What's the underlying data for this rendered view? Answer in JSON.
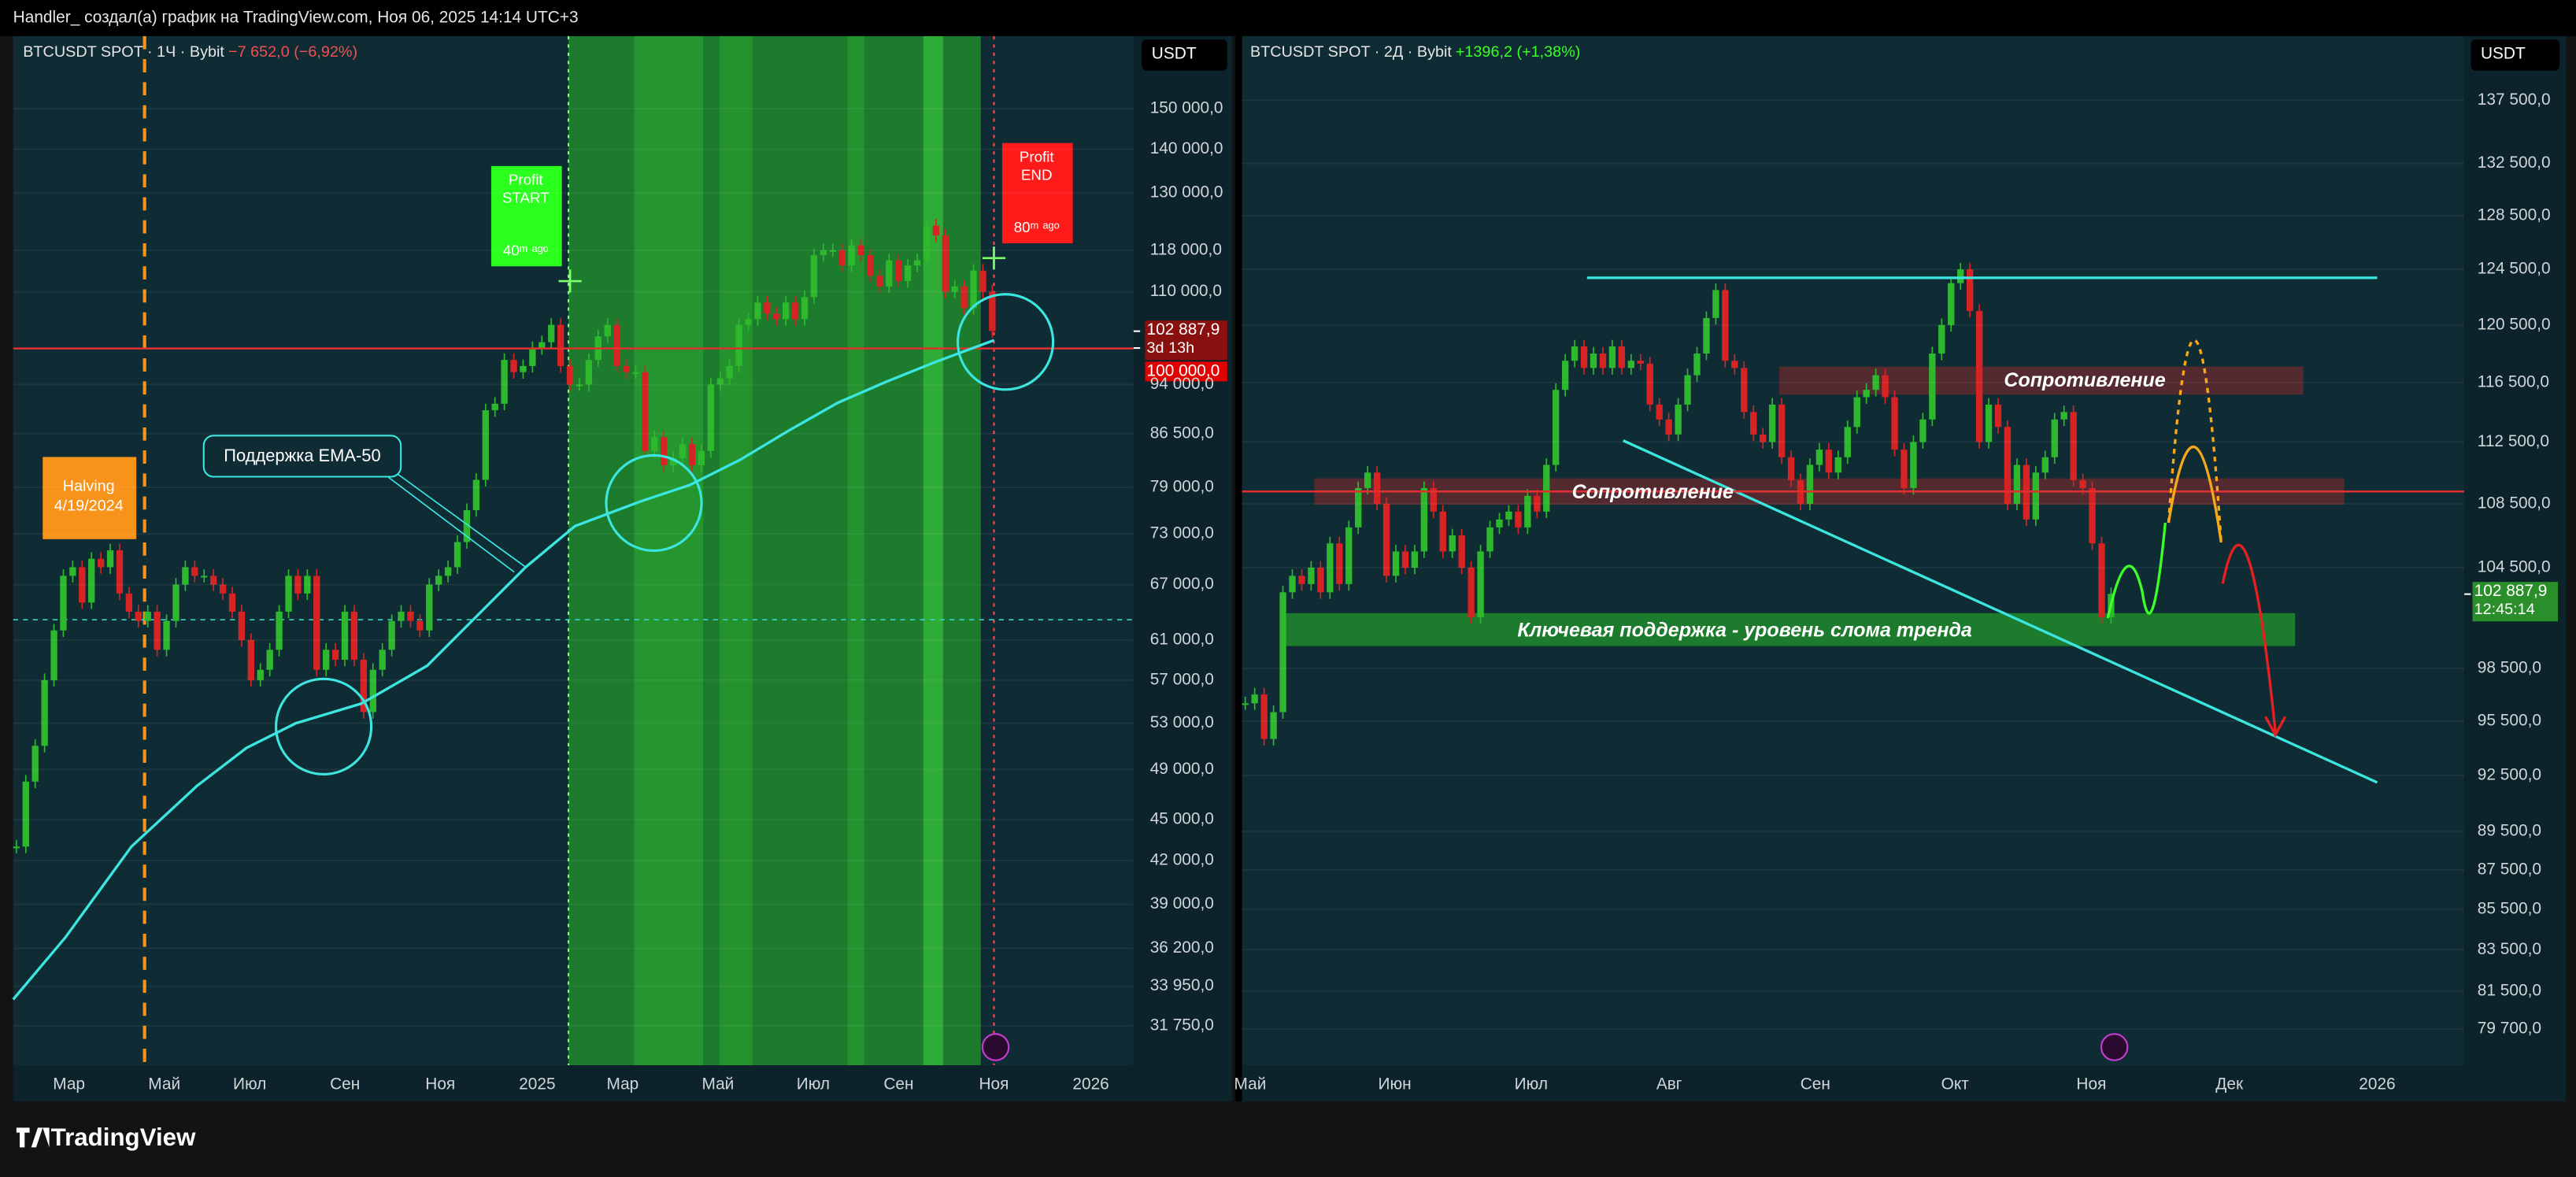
{
  "header": {
    "text": "Handler_ создал(а) график на TradingView.com, Ноя 06, 2025 14:14 UTC+3"
  },
  "panels": [
    {
      "symbol": "BTCUSDT SPOT · 1Ч · Bybit",
      "change": "−7 652,0 (−6,92%)",
      "currency": "USDT",
      "log_scale": true,
      "yticks": [
        {
          "value": 150000,
          "label": "150 000,0"
        },
        {
          "value": 140000,
          "label": "140 000,0"
        },
        {
          "value": 130000,
          "label": "130 000,0"
        },
        {
          "value": 118000,
          "label": "118 000,0"
        },
        {
          "value": 110000,
          "label": "110 000,0"
        },
        {
          "value": 94000,
          "label": "94 000,0"
        },
        {
          "value": 86500,
          "label": "86 500,0"
        },
        {
          "value": 79000,
          "label": "79 000,0"
        },
        {
          "value": 73000,
          "label": "73 000,0"
        },
        {
          "value": 67000,
          "label": "67 000,0"
        },
        {
          "value": 61000,
          "label": "61 000,0"
        },
        {
          "value": 57000,
          "label": "57 000,0"
        },
        {
          "value": 53000,
          "label": "53 000,0"
        },
        {
          "value": 49000,
          "label": "49 000,0"
        },
        {
          "value": 45000,
          "label": "45 000,0"
        },
        {
          "value": 42000,
          "label": "42 000,0"
        },
        {
          "value": 39000,
          "label": "39 000,0"
        },
        {
          "value": 36200,
          "label": "36 200,0"
        },
        {
          "value": 33950,
          "label": "33 950,0"
        },
        {
          "value": 31750,
          "label": "31 750,0"
        }
      ],
      "xlabels": [
        "Мар",
        "Май",
        "Июл",
        "Сен",
        "Ноя",
        "2025",
        "Мар",
        "Май",
        "Июл",
        "Сен",
        "Ноя",
        "2026"
      ],
      "last_price": {
        "value": 102887.9,
        "label": "102 887,9"
      },
      "countdown": "3d 13h",
      "level": {
        "value": 100000,
        "label": "100 000,0"
      },
      "closes": [
        43000,
        48000,
        51000,
        57000,
        62000,
        68000,
        69000,
        65000,
        70000,
        69000,
        71000,
        66000,
        64000,
        63000,
        64000,
        60000,
        63000,
        67000,
        69000,
        68000,
        68000,
        67000,
        66000,
        64000,
        61000,
        57000,
        58000,
        60000,
        64000,
        68000,
        66000,
        68000,
        58000,
        60000,
        59000,
        64000,
        59000,
        54000,
        58000,
        60000,
        63000,
        64000,
        63000,
        62000,
        67000,
        68000,
        69000,
        72000,
        76000,
        80000,
        90000,
        91000,
        98000,
        96000,
        97000,
        100000,
        101000,
        104000,
        97000,
        94000,
        94000,
        98000,
        102000,
        104000,
        97000,
        96000,
        96000,
        84000,
        86000,
        82000,
        83000,
        85000,
        82000,
        84000,
        94000,
        95000,
        97000,
        104000,
        105000,
        108000,
        106000,
        105000,
        108000,
        105000,
        109000,
        117000,
        118000,
        118000,
        115000,
        119000,
        117000,
        113000,
        111000,
        116000,
        112000,
        115000,
        116000,
        123000,
        121000,
        110000,
        111000,
        107000,
        114000,
        110000,
        102900
      ],
      "annotations": {
        "halving": [
          "Halving",
          "4/19/2024"
        ],
        "profit_start": [
          "Profit",
          "START",
          "40ᵐ ᵃᵍᵒ"
        ],
        "profit_end": [
          "Profit",
          "END",
          "80ᵐ ᵃᵍᵒ"
        ],
        "ema": "Поддержка EMA-50"
      }
    },
    {
      "symbol": "BTCUSDT SPOT · 2Д · Bybit",
      "change": "+1396,2 (+1,38%)",
      "currency": "USDT",
      "log_scale": true,
      "yticks": [
        {
          "value": 137500,
          "label": "137 500,0"
        },
        {
          "value": 132500,
          "label": "132 500,0"
        },
        {
          "value": 128500,
          "label": "128 500,0"
        },
        {
          "value": 124500,
          "label": "124 500,0"
        },
        {
          "value": 120500,
          "label": "120 500,0"
        },
        {
          "value": 116500,
          "label": "116 500,0"
        },
        {
          "value": 112500,
          "label": "112 500,0"
        },
        {
          "value": 108500,
          "label": "108 500,0"
        },
        {
          "value": 104500,
          "label": "104 500,0"
        },
        {
          "value": 98500,
          "label": "98 500,0"
        },
        {
          "value": 95500,
          "label": "95 500,0"
        },
        {
          "value": 92500,
          "label": "92 500,0"
        },
        {
          "value": 89500,
          "label": "89 500,0"
        },
        {
          "value": 87500,
          "label": "87 500,0"
        },
        {
          "value": 85500,
          "label": "85 500,0"
        },
        {
          "value": 83500,
          "label": "83 500,0"
        },
        {
          "value": 81500,
          "label": "81 500,0"
        },
        {
          "value": 79700,
          "label": "79 700,0"
        }
      ],
      "xlabels": [
        "Май",
        "Июн",
        "Июл",
        "Авг",
        "Сен",
        "Окт",
        "Ноя",
        "Дек",
        "2026"
      ],
      "last_price": {
        "value": 102887.9,
        "label": "102 887,9"
      },
      "countdown": "12:45:14",
      "closes": [
        96500,
        97000,
        94500,
        96000,
        103000,
        104000,
        103500,
        104500,
        103000,
        106000,
        103500,
        107000,
        109500,
        110500,
        108500,
        104000,
        105500,
        104500,
        105500,
        109500,
        108000,
        105500,
        106500,
        104500,
        101500,
        105500,
        107000,
        107500,
        108000,
        107000,
        109000,
        108000,
        111000,
        116000,
        118000,
        119000,
        117500,
        118500,
        117500,
        119000,
        117500,
        118000,
        117800,
        115000,
        114000,
        113000,
        115000,
        117000,
        118500,
        121000,
        123000,
        118000,
        117500,
        114500,
        113000,
        112500,
        115000,
        111500,
        110000,
        108500,
        111000,
        112000,
        110500,
        111500,
        113500,
        115500,
        116000,
        117000,
        115500,
        112000,
        109500,
        112500,
        114000,
        118500,
        120500,
        123500,
        124500,
        121500,
        112500,
        115000,
        113500,
        108500,
        111000,
        107500,
        110500,
        111500,
        114000,
        114500,
        110000,
        109500,
        106000,
        101500,
        102900
      ],
      "annotations": {
        "resistance_top": "Сопротивление",
        "resistance_mid": "Сопротивление",
        "support": "Ключевая поддержка - уровень слома тренда"
      }
    }
  ],
  "footer": {
    "brand": "TradingView"
  }
}
